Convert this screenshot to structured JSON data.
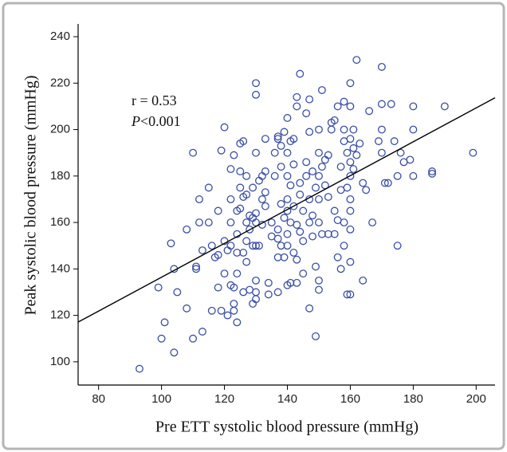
{
  "chart_data": {
    "type": "scatter",
    "xlabel": "Pre ETT systolic blood pressure (mmHg)",
    "ylabel": "Peak systolic blood pressure (mmHg)",
    "annotations": [
      "r = 0.53",
      "P",
      "<0.001"
    ],
    "color": "#3a4ea6",
    "xlim": [
      73.5,
      206
    ],
    "ylim": [
      90,
      245.5
    ],
    "xticks": [
      80,
      100,
      120,
      140,
      160,
      180,
      200
    ],
    "yticks": [
      100,
      120,
      140,
      160,
      180,
      200,
      220,
      240
    ],
    "x": [
      93,
      99,
      100,
      101,
      103,
      104,
      104,
      105,
      108,
      108,
      110,
      110,
      111,
      111,
      112,
      112,
      113,
      113,
      115,
      115,
      116,
      116,
      117,
      118,
      118,
      118,
      119,
      119,
      120,
      120,
      120,
      121,
      121,
      122,
      122,
      122,
      122,
      122,
      123,
      123,
      123,
      123,
      124,
      124,
      124,
      124,
      124,
      125,
      125,
      125,
      125,
      126,
      126,
      126,
      126,
      127,
      127,
      127,
      127,
      127,
      128,
      128,
      128,
      129,
      129,
      129,
      129,
      130,
      130,
      130,
      130,
      130,
      130,
      130,
      130,
      130,
      131,
      131,
      132,
      132,
      132,
      133,
      133,
      133,
      133,
      134,
      134,
      135,
      135,
      136,
      136,
      137,
      137,
      137,
      137,
      137,
      137,
      138,
      138,
      138,
      138,
      139,
      139,
      139,
      140,
      140,
      140,
      140,
      140,
      140,
      140,
      140,
      141,
      141,
      141,
      141,
      142,
      142,
      142,
      142,
      143,
      143,
      143,
      143,
      143,
      144,
      144,
      144,
      144,
      145,
      145,
      145,
      146,
      146,
      146,
      147,
      147,
      147,
      147,
      147,
      148,
      148,
      148,
      149,
      149,
      149,
      150,
      150,
      150,
      150,
      150,
      150,
      150,
      151,
      151,
      151,
      152,
      152,
      153,
      153,
      153,
      154,
      154,
      155,
      155,
      155,
      156,
      156,
      156,
      157,
      157,
      157,
      158,
      158,
      158,
      158,
      158,
      159,
      159,
      159,
      160,
      160,
      160,
      160,
      160,
      160,
      160,
      160,
      160,
      160,
      161,
      161,
      161,
      162,
      162,
      163,
      164,
      164,
      165,
      166,
      167,
      169,
      170,
      170,
      170,
      170,
      171,
      172,
      173,
      174,
      175,
      175,
      176,
      177,
      179,
      180,
      180,
      180,
      186,
      186,
      190,
      199
    ],
    "values": [
      97,
      132,
      110,
      117,
      151,
      140,
      104,
      130,
      123,
      157,
      190,
      110,
      141,
      140,
      170,
      160,
      113,
      148,
      160,
      175,
      122,
      150,
      145,
      132,
      146,
      165,
      191,
      122,
      201,
      152,
      138,
      148,
      120,
      133,
      150,
      160,
      170,
      183,
      122,
      125,
      132,
      189,
      117,
      138,
      147,
      155,
      165,
      166,
      175,
      182,
      194,
      195,
      171,
      130,
      147,
      160,
      180,
      152,
      172,
      143,
      131,
      163,
      157,
      125,
      150,
      162,
      175,
      215,
      220,
      150,
      135,
      127,
      130,
      190,
      164,
      160,
      178,
      150,
      180,
      159,
      170,
      196,
      173,
      182,
      167,
      134,
      129,
      154,
      160,
      180,
      190,
      196,
      197,
      130,
      145,
      153,
      157,
      150,
      184,
      193,
      168,
      162,
      199,
      145,
      170,
      180,
      190,
      205,
      133,
      155,
      150,
      165,
      160,
      134,
      195,
      176,
      147,
      185,
      167,
      196,
      134,
      144,
      159,
      210,
      214,
      224,
      177,
      172,
      156,
      165,
      152,
      138,
      180,
      186,
      207,
      170,
      199,
      160,
      123,
      213,
      182,
      163,
      154,
      111,
      141,
      175,
      200,
      190,
      180,
      170,
      131,
      160,
      135,
      217,
      155,
      184,
      187,
      176,
      171,
      189,
      155,
      203,
      200,
      204,
      165,
      155,
      210,
      161,
      145,
      174,
      140,
      184,
      212,
      195,
      200,
      150,
      160,
      129,
      175,
      190,
      220,
      210,
      196,
      186,
      180,
      170,
      165,
      157,
      143,
      129,
      200,
      183,
      192,
      230,
      189,
      194,
      177,
      135,
      174,
      208,
      160,
      195,
      227,
      211,
      190,
      200,
      177,
      177,
      211,
      195,
      150,
      180,
      190,
      186,
      187,
      200,
      210,
      180,
      181,
      182,
      210,
      190
    ],
    "fit_line": {
      "x": [
        73.5,
        206
      ],
      "values": [
        117.1,
        213.7
      ],
      "color": "#000000"
    }
  }
}
